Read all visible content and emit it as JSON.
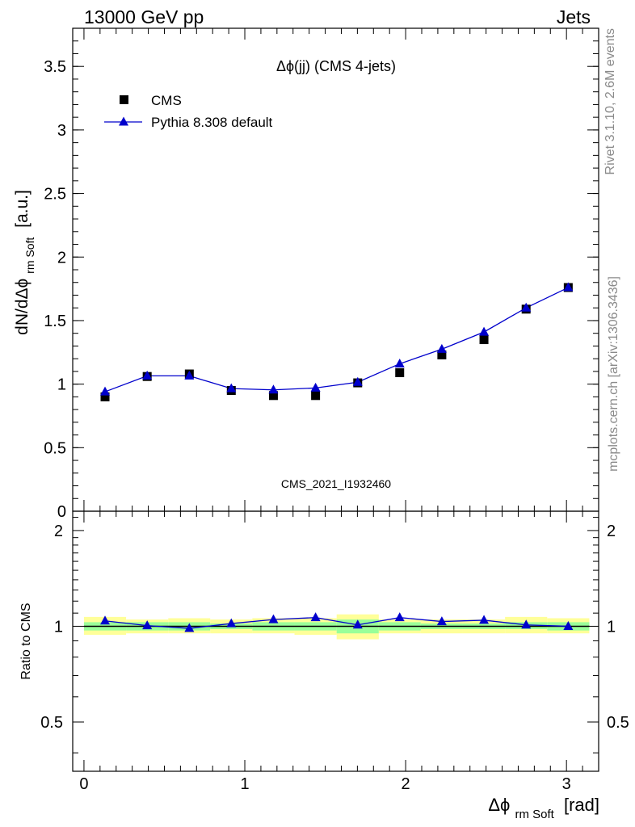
{
  "header": {
    "left": "13000 GeV pp",
    "right": "Jets"
  },
  "side_labels": {
    "rivet": "Rivet 3.1.10,  2.6M events",
    "mcplots": "mcplots.cern.ch [arXiv:1306.3436]"
  },
  "colors": {
    "data": "#000000",
    "mc": "#0000cc",
    "band_outer": "#ffff99",
    "band_inner": "#99ff99",
    "watermark": "#999999"
  },
  "chart_data": [
    {
      "type": "scatter",
      "title": "Δϕ(jj) (CMS 4-jets)",
      "watermark": "CMS_2021_I1932460",
      "ylabel": "dN/dΔϕ",
      "ylabel_sub": "rm Soft",
      "ylabel_unit": "[a.u.]",
      "xlim": [
        -0.07,
        3.2
      ],
      "ylim": [
        0,
        3.8
      ],
      "y_ticks": [
        0,
        0.5,
        1,
        1.5,
        2,
        2.5,
        3,
        3.5
      ],
      "y_tick_labels": [
        "0",
        "0.5",
        "1",
        "1.5",
        "2",
        "2.5",
        "3",
        "3.5"
      ],
      "legend_position": "top-left",
      "series": [
        {
          "name": "CMS",
          "marker": "square",
          "x": [
            0.131,
            0.393,
            0.655,
            0.916,
            1.178,
            1.44,
            1.702,
            1.963,
            2.225,
            2.487,
            2.749,
            3.011
          ],
          "values": [
            0.9,
            1.06,
            1.08,
            0.95,
            0.91,
            0.91,
            1.01,
            1.09,
            1.23,
            1.35,
            1.59,
            1.76
          ]
        },
        {
          "name": "Pythia 8.308 default",
          "marker": "triangle",
          "x": [
            0.131,
            0.393,
            0.655,
            0.916,
            1.178,
            1.44,
            1.702,
            1.963,
            2.225,
            2.487,
            2.749,
            3.011
          ],
          "values": [
            0.94,
            1.065,
            1.065,
            0.965,
            0.955,
            0.97,
            1.015,
            1.16,
            1.275,
            1.41,
            1.6,
            1.76
          ]
        }
      ]
    },
    {
      "type": "line",
      "ylabel": "Ratio to CMS",
      "xlabel": "Δϕ",
      "xlabel_sub": "rm Soft",
      "xlabel_unit": "[rad]",
      "xlim": [
        -0.07,
        3.2
      ],
      "ylim": [
        0.35,
        2.3
      ],
      "log_y": true,
      "y_ticks": [
        0.5,
        1,
        2
      ],
      "y_tick_labels": [
        "0.5",
        "1",
        "2"
      ],
      "x_ticks": [
        0,
        1,
        2,
        3
      ],
      "x_tick_labels": [
        "0",
        "1",
        "2",
        "3"
      ],
      "bin_edges": [
        0,
        0.262,
        0.524,
        0.785,
        1.047,
        1.309,
        1.571,
        1.833,
        2.094,
        2.356,
        2.618,
        2.88,
        3.142
      ],
      "band_outer_lo": [
        0.94,
        0.95,
        0.95,
        0.95,
        0.95,
        0.94,
        0.91,
        0.95,
        0.95,
        0.95,
        0.95,
        0.95
      ],
      "band_outer_hi": [
        1.07,
        1.05,
        1.06,
        1.05,
        1.06,
        1.06,
        1.09,
        1.05,
        1.05,
        1.05,
        1.07,
        1.06
      ],
      "band_inner_lo": [
        0.97,
        0.97,
        0.97,
        0.98,
        0.97,
        0.97,
        0.95,
        0.97,
        0.98,
        0.98,
        0.98,
        0.97
      ],
      "band_inner_hi": [
        1.03,
        1.03,
        1.03,
        1.02,
        1.03,
        1.03,
        1.05,
        1.03,
        1.02,
        1.02,
        1.03,
        1.03
      ],
      "series": [
        {
          "name": "Pythia 8.308 default",
          "x": [
            0.131,
            0.393,
            0.655,
            0.916,
            1.178,
            1.44,
            1.702,
            1.963,
            2.225,
            2.487,
            2.749,
            3.011
          ],
          "values": [
            1.04,
            1.005,
            0.985,
            1.02,
            1.05,
            1.065,
            1.01,
            1.065,
            1.035,
            1.045,
            1.01,
            1.0
          ]
        }
      ]
    }
  ]
}
